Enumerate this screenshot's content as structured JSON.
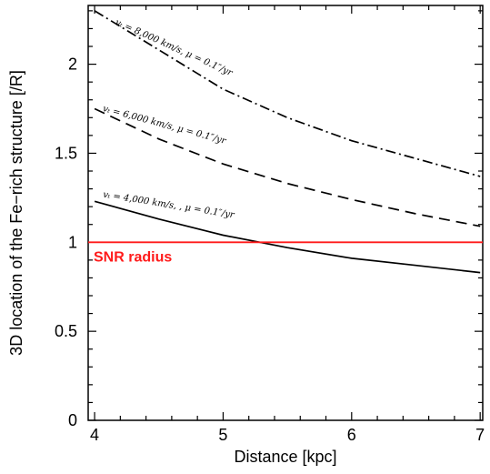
{
  "chart_data": {
    "type": "line",
    "xlabel": "Distance [kpc]",
    "ylabel": "3D location of the Fe−rich structure [/R]",
    "xlim": [
      3.95,
      7.02
    ],
    "ylim": [
      0,
      2.33
    ],
    "x_ticks": [
      "4",
      "5",
      "6",
      "7"
    ],
    "y_ticks": [
      "0",
      "0.5",
      "1",
      "1.5",
      "2"
    ],
    "grid": false,
    "series": [
      {
        "label": "vₜ = 8,000 km/s, μ = 0.1″/yr",
        "style": "dashdot",
        "x": [
          4,
          4.5,
          5,
          5.5,
          6,
          6.5,
          7
        ],
        "y": [
          2.3,
          2.08,
          1.86,
          1.7,
          1.57,
          1.47,
          1.37
        ]
      },
      {
        "label": "vₜ = 6,000 km/s, μ = 0.1″/yr",
        "style": "dashed",
        "x": [
          4,
          4.5,
          5,
          5.5,
          6,
          6.5,
          7
        ],
        "y": [
          1.75,
          1.58,
          1.44,
          1.33,
          1.24,
          1.16,
          1.09
        ]
      },
      {
        "label": "vₜ = 4,000 km/s, , μ = 0.1″/yr",
        "style": "solid",
        "x": [
          4,
          4.5,
          5,
          5.5,
          6,
          6.5,
          7
        ],
        "y": [
          1.23,
          1.13,
          1.04,
          0.97,
          0.91,
          0.87,
          0.83
        ]
      }
    ],
    "reference_line": {
      "y": 1.0,
      "label": "SNR radius",
      "color": "#ff1a1a"
    }
  }
}
